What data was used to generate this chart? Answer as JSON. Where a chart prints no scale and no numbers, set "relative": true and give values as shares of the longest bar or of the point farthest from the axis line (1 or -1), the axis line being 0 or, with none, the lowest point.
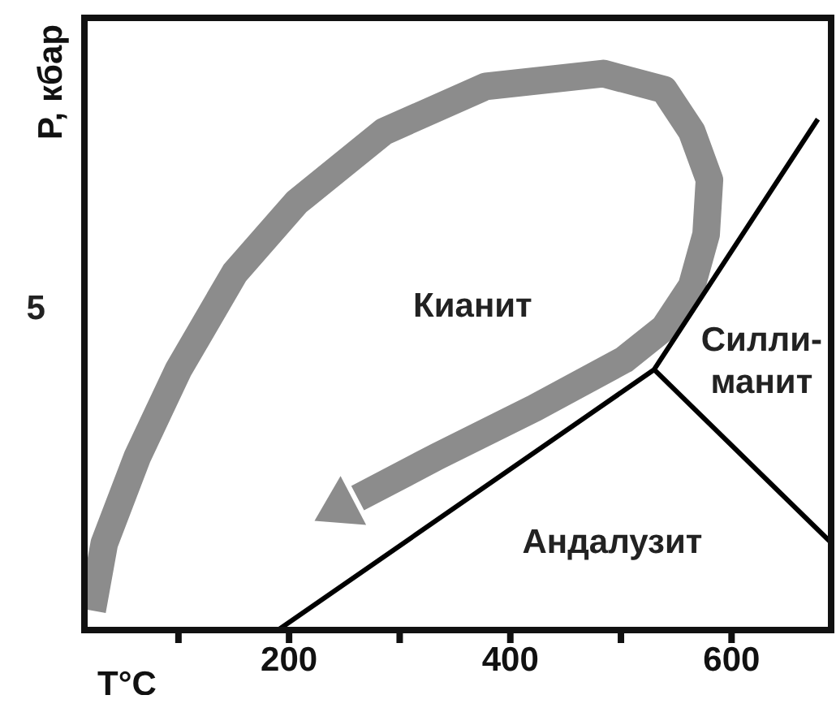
{
  "chart_data": {
    "type": "line",
    "xlabel": "T°C",
    "ylabel": "P, кбар",
    "relative": true,
    "xlim": [
      15,
      690
    ],
    "xticks": [
      {
        "value": 100,
        "label": null
      },
      200,
      {
        "value": 300,
        "label": null
      },
      400,
      {
        "value": 500,
        "label": null
      },
      600
    ],
    "marker": "none",
    "line_style": "solid",
    "series": [
      {
        "color": "#8c8c8c",
        "x": [
          22,
          33,
          63,
          100,
          151,
          207,
          286,
          378,
          484,
          539,
          564,
          580,
          577,
          564,
          539,
          503,
          422,
          334,
          262
        ],
        "values": [
          0.035,
          0.156,
          0.312,
          0.468,
          0.642,
          0.769,
          0.896,
          0.977,
          1,
          0.971,
          0.896,
          0.809,
          0.711,
          0.618,
          0.543,
          0.486,
          0.399,
          0.312,
          0.237
        ]
      },
      {
        "color": "#000000",
        "x": [
          190,
          530,
          678,
          null,
          530,
          690
        ],
        "values": [
          0,
          0.468,
          0.918,
          null,
          0.468,
          0.157
        ]
      }
    ],
    "annotations": [
      "5",
      "Кианит",
      "Силли-\nманит",
      "Андалузит"
    ]
  }
}
